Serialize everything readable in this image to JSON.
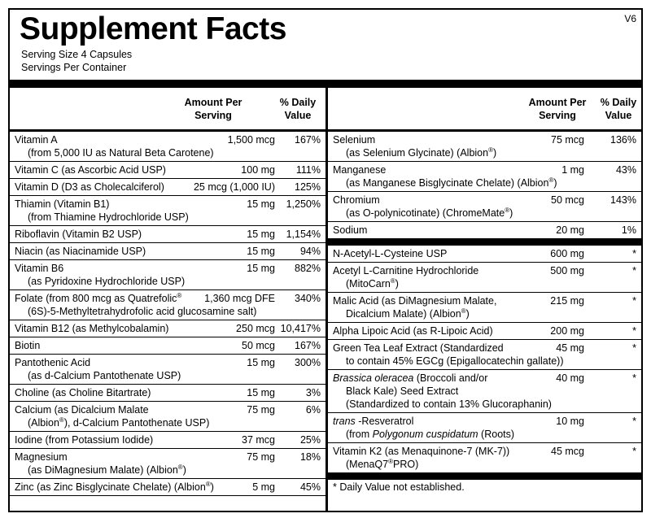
{
  "header": {
    "title": "Supplement Facts",
    "version": "V6",
    "serving_size": "Serving Size  4 Capsules",
    "servings": "Servings Per Container"
  },
  "left_table": {
    "header": {
      "amount": "Amount Per Serving",
      "dv": "% Daily Value"
    },
    "groups": [
      [
        {
          "name": [
            "Vitamin A",
            "(from 5,000 IU as Natural Beta Carotene)"
          ],
          "amount": "1,500 mcg",
          "dv": "167%"
        },
        {
          "name": [
            "Vitamin C (as Ascorbic Acid USP)"
          ],
          "amount": "100 mg",
          "dv": "111%"
        },
        {
          "name": [
            "Vitamin D (D3 as Cholecalciferol)"
          ],
          "amount": "25 mcg (1,000 IU)",
          "dv": "125%"
        },
        {
          "name": [
            "Thiamin (Vitamin B1)",
            "(from Thiamine Hydrochloride USP)"
          ],
          "amount": "15 mg",
          "dv": "1,250%"
        },
        {
          "name": [
            "Riboflavin (Vitamin B2 USP)"
          ],
          "amount": "15 mg",
          "dv": "1,154%"
        },
        {
          "name": [
            "Niacin (as Niacinamide USP)"
          ],
          "amount": "15 mg",
          "dv": "94%"
        },
        {
          "name": [
            "Vitamin B6",
            "(as Pyridoxine Hydrochloride USP)"
          ],
          "amount": "15 mg",
          "dv": "882%"
        },
        {
          "name": [
            "Folate (from 800 mcg as Quatrefolic®",
            "(6S)-5-Methyltetrahydrofolic acid glucosamine salt)"
          ],
          "amount": "1,360 mcg DFE",
          "dv": "340%"
        },
        {
          "name": [
            "Vitamin B12 (as Methylcobalamin)"
          ],
          "amount": "250 mcg",
          "dv": "10,417%"
        },
        {
          "name": [
            "Biotin"
          ],
          "amount": "50 mcg",
          "dv": "167%"
        },
        {
          "name": [
            "Pantothenic Acid",
            "(as d-Calcium Pantothenate USP)"
          ],
          "amount": "15 mg",
          "dv": "300%"
        },
        {
          "name": [
            "Choline (as Choline Bitartrate)"
          ],
          "amount": "15 mg",
          "dv": "3%"
        },
        {
          "name": [
            "Calcium (as Dicalcium Malate",
            "(Albion®), d-Calcium Pantothenate USP)"
          ],
          "amount": "75 mg",
          "dv": "6%"
        },
        {
          "name": [
            "Iodine (from Potassium Iodide)"
          ],
          "amount": "37 mcg",
          "dv": "25%"
        },
        {
          "name": [
            "Magnesium",
            "(as DiMagnesium Malate) (Albion®)"
          ],
          "amount": "75 mg",
          "dv": "18%"
        },
        {
          "name": [
            "Zinc (as Zinc Bisglycinate Chelate) (Albion®)"
          ],
          "amount": "5 mg",
          "dv": "45%"
        }
      ]
    ]
  },
  "right_table": {
    "header": {
      "amount": "Amount Per Serving",
      "dv": "% Daily Value"
    },
    "groups": [
      [
        {
          "name": [
            "Selenium",
            "(as Selenium Glycinate) (Albion®)"
          ],
          "amount": "75 mcg",
          "dv": "136%"
        },
        {
          "name": [
            "Manganese",
            "(as Manganese Bisglycinate Chelate) (Albion®)"
          ],
          "amount": "1 mg",
          "dv": "43%"
        },
        {
          "name": [
            "Chromium",
            "(as O-polynicotinate) (ChromeMate®)"
          ],
          "amount": "50 mcg",
          "dv": "143%"
        },
        {
          "name": [
            "Sodium"
          ],
          "amount": "20 mg",
          "dv": "1%"
        }
      ],
      [
        {
          "name": [
            "N-Acetyl-L-Cysteine USP"
          ],
          "amount": "600 mg",
          "dv": "*"
        },
        {
          "name": [
            "Acetyl L-Carnitine Hydrochloride",
            "(MitoCarn®)"
          ],
          "amount": "500 mg",
          "dv": "*"
        },
        {
          "name": [
            "Malic Acid (as DiMagnesium Malate,",
            "Dicalcium Malate) (Albion®)"
          ],
          "amount": "215 mg",
          "dv": "*"
        },
        {
          "name": [
            "Alpha Lipoic Acid (as R-Lipoic Acid)"
          ],
          "amount": "200 mg",
          "dv": "*"
        },
        {
          "name": [
            "Green Tea Leaf Extract (Standardized",
            "to contain 45% EGCg (Epigallocatechin gallate))"
          ],
          "amount": "45 mg",
          "dv": "*"
        },
        {
          "name": [
            [
              {
                "italic": "Brassica oleracea"
              },
              " (Broccoli and/or"
            ],
            "Black Kale) Seed Extract",
            "(Standardized to contain 13% Glucoraphanin)"
          ],
          "amount": "40 mg",
          "dv": "*"
        },
        {
          "name": [
            [
              {
                "italic": "trans"
              },
              " -Resveratrol"
            ],
            [
              "(from ",
              {
                "italic": "Polygonum cuspidatum"
              },
              " (Roots)"
            ]
          ],
          "amount": "10 mg",
          "dv": "*"
        },
        {
          "name": [
            "Vitamin K2 (as Menaquinone-7 (MK-7))",
            "(MenaQ7®PRO)"
          ],
          "amount": "45 mcg",
          "dv": "*"
        }
      ]
    ],
    "footnote": "* Daily Value not established."
  }
}
